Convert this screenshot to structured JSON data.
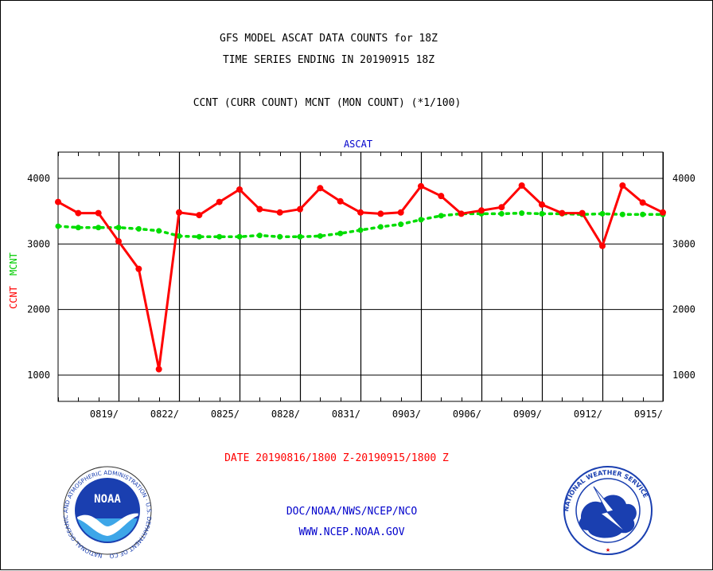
{
  "header": {
    "title_line1": "GFS MODEL ASCAT DATA COUNTS for 18Z",
    "title_line2": "TIME SERIES ENDING IN 20190915 18Z",
    "subtitle": "CCNT (CURR COUNT) MCNT (MON COUNT) (*1/100)"
  },
  "footer": {
    "date_range": "DATE 20190816/1800 Z-20190915/1800 Z",
    "org": "DOC/NOAA/NWS/NCEP/NCO",
    "url": "WWW.NCEP.NOAA.GOV"
  },
  "logos": {
    "noaa_text": "NOAA",
    "noaa_ring": "NATIONAL OCEANIC AND ATMOSPHERIC ADMINISTRATION · U.S. DEPARTMENT OF COMMERCE ·",
    "nws_ring": "NATIONAL WEATHER SERVICE"
  },
  "colors": {
    "ccnt": "#ff0000",
    "mcnt": "#00dd00",
    "title": "#000000",
    "blue_text": "#0000cc"
  },
  "chart_data": {
    "type": "line",
    "title": "ASCAT",
    "ylabel_ccnt": "CCNT",
    "ylabel_mcnt": "MCNT",
    "ylim": [
      600,
      4400
    ],
    "yticks": [
      1000,
      2000,
      3000,
      4000
    ],
    "x_range": [
      0,
      30
    ],
    "x_major": [
      3,
      6,
      9,
      12,
      15,
      18,
      21,
      24,
      27,
      30
    ],
    "x_labels": [
      {
        "day": 3,
        "label": "0819/"
      },
      {
        "day": 6,
        "label": "0822/"
      },
      {
        "day": 9,
        "label": "0825/"
      },
      {
        "day": 12,
        "label": "0828/"
      },
      {
        "day": 15,
        "label": "0831/"
      },
      {
        "day": 18,
        "label": "0903/"
      },
      {
        "day": 21,
        "label": "0906/"
      },
      {
        "day": 24,
        "label": "0909/"
      },
      {
        "day": 27,
        "label": "0912/"
      },
      {
        "day": 30,
        "label": "0915/"
      }
    ],
    "series": [
      {
        "name": "CCNT",
        "x": [
          0,
          1,
          2,
          3,
          4,
          5,
          6,
          7,
          8,
          9,
          10,
          11,
          12,
          13,
          14,
          15,
          16,
          17,
          18,
          19,
          20,
          21,
          22,
          23,
          24,
          25,
          26,
          27,
          28,
          29,
          30
        ],
        "values": [
          3640,
          3470,
          3470,
          3040,
          2620,
          1090,
          3480,
          3440,
          3640,
          3830,
          3530,
          3480,
          3530,
          3850,
          3650,
          3480,
          3460,
          3480,
          3880,
          3730,
          3460,
          3510,
          3560,
          3890,
          3600,
          3470,
          3470,
          2970,
          3890,
          3630,
          3480
        ]
      },
      {
        "name": "MCNT",
        "x": [
          0,
          1,
          2,
          3,
          4,
          5,
          6,
          7,
          8,
          9,
          10,
          11,
          12,
          13,
          14,
          15,
          16,
          17,
          18,
          19,
          20,
          21,
          22,
          23,
          24,
          25,
          26,
          27,
          28,
          29,
          30
        ],
        "values": [
          3270,
          3250,
          3250,
          3250,
          3230,
          3200,
          3120,
          3110,
          3110,
          3110,
          3130,
          3110,
          3110,
          3120,
          3160,
          3210,
          3260,
          3300,
          3370,
          3430,
          3460,
          3460,
          3460,
          3470,
          3460,
          3460,
          3450,
          3460,
          3450,
          3450,
          3450
        ]
      }
    ]
  }
}
